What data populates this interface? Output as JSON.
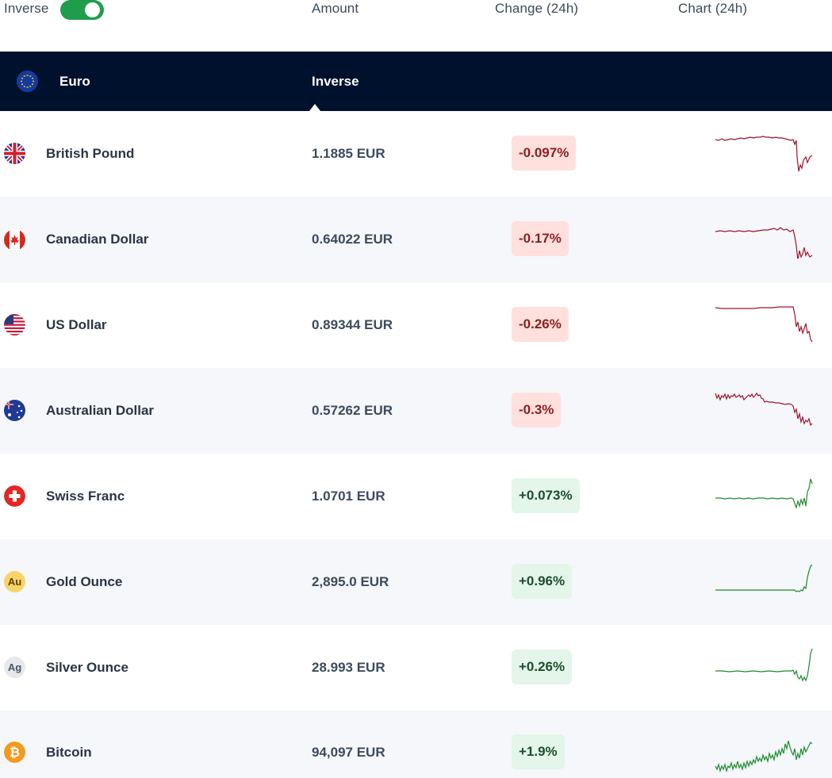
{
  "header": {
    "inverse_label": "Inverse",
    "inverse_toggle_on": true,
    "amount_label": "Amount",
    "change_label": "Change (24h)",
    "chart_label": "Chart (24h)"
  },
  "base": {
    "name": "Euro",
    "inverse_label": "Inverse",
    "icon": "eu-flag-icon"
  },
  "colors": {
    "negative_line": "#a3122a",
    "positive_line": "#1d8a2e",
    "negative_badge_bg": "#ffe0dd",
    "positive_badge_bg": "#e3f6e9",
    "header_bg": "#00112e",
    "toggle_on": "#1f9d4a"
  },
  "rows": [
    {
      "name": "British Pound",
      "amount": "1.1885 EUR",
      "change": "-0.097%",
      "direction": "negative",
      "icon": "uk-flag-icon"
    },
    {
      "name": "Canadian Dollar",
      "amount": "0.64022 EUR",
      "change": "-0.17%",
      "direction": "negative",
      "icon": "canada-flag-icon"
    },
    {
      "name": "US Dollar",
      "amount": "0.89344 EUR",
      "change": "-0.26%",
      "direction": "negative",
      "icon": "us-flag-icon"
    },
    {
      "name": "Australian Dollar",
      "amount": "0.57262 EUR",
      "change": "-0.3%",
      "direction": "negative",
      "icon": "australia-flag-icon"
    },
    {
      "name": "Swiss Franc",
      "amount": "1.0701 EUR",
      "change": "+0.073%",
      "direction": "positive",
      "icon": "swiss-flag-icon"
    },
    {
      "name": "Gold Ounce",
      "amount": "2,895.0 EUR",
      "change": "+0.96%",
      "direction": "positive",
      "icon": "gold-coin-icon",
      "icon_text": "Au"
    },
    {
      "name": "Silver Ounce",
      "amount": "28.993 EUR",
      "change": "+0.26%",
      "direction": "positive",
      "icon": "silver-coin-icon",
      "icon_text": "Ag"
    },
    {
      "name": "Bitcoin",
      "amount": "94,097 EUR",
      "change": "+1.9%",
      "direction": "positive",
      "icon": "bitcoin-icon"
    }
  ]
}
